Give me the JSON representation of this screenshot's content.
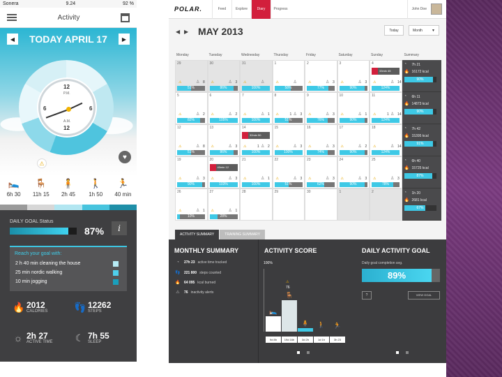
{
  "phone": {
    "status": {
      "carrier": "Sonera",
      "time": "9.24",
      "battery": "92 %"
    },
    "header": {
      "title": "Activity"
    },
    "date": "TODAY APRIL 17",
    "clock": {
      "top": "12",
      "top_sub": "P.M.",
      "left": "6",
      "right": "6",
      "bottom_sub": "A.M.",
      "bottom": "12"
    },
    "activities": [
      {
        "icon": "sleep-icon",
        "glyph": "🛌",
        "time": "6h 30",
        "color": "#9a9a9a"
      },
      {
        "icon": "sitting-icon",
        "glyph": "🪑",
        "time": "11h 15",
        "color": "#d7d7d7"
      },
      {
        "icon": "standing-icon",
        "glyph": "🧍",
        "time": "2h 45",
        "color": "#b2e6f1"
      },
      {
        "icon": "walking-icon",
        "glyph": "🚶",
        "time": "1h 50",
        "color": "#47c4de"
      },
      {
        "icon": "running-icon",
        "glyph": "🏃",
        "time": "40 min",
        "color": "#1f8fa8"
      }
    ],
    "daily_goal": {
      "label": "DAILY GOAL Status",
      "percent_text": "87%",
      "percent": 87,
      "info": "i"
    },
    "reach": {
      "heading": "Reach your goal with:",
      "items": [
        {
          "text": "2 h 40 min cleaning the house",
          "color": "#b7ecf6"
        },
        {
          "text": "25 min nordic walking",
          "color": "#4fd0ec"
        },
        {
          "text": "10 min jogging",
          "color": "#1a9fbc"
        }
      ]
    },
    "stats": [
      {
        "icon": "flame-icon",
        "glyph": "🔥",
        "value": "2012",
        "label": "CALORIES"
      },
      {
        "icon": "footsteps-icon",
        "glyph": "👣",
        "value": "12262",
        "label": "STEPS"
      },
      {
        "icon": "active-time-icon",
        "glyph": "☼",
        "value": "2h 27",
        "label": "ACTIVE TIME"
      },
      {
        "icon": "moon-icon",
        "glyph": "☾",
        "value": "7h 55",
        "label": "SLEEP"
      }
    ]
  },
  "web": {
    "logo": "POLAR.",
    "tabs": [
      {
        "label": "Feed",
        "active": false
      },
      {
        "label": "Explore",
        "active": false
      },
      {
        "label": "Diary",
        "active": true
      },
      {
        "label": "Progress",
        "active": false
      }
    ],
    "user": "John Doe",
    "month": "MAY 2013",
    "today_btn": "Today",
    "view_select": "Month",
    "weekdays": [
      "Monday",
      "Tuesday",
      "Wednesday",
      "Thursday",
      "Friday",
      "Saturday",
      "Sunday"
    ],
    "summary_label": "Summary",
    "weeks": [
      {
        "days": [
          {
            "d": "29",
            "other": true,
            "c1": "",
            "c2": "8",
            "pct": 51,
            "txt": "51%"
          },
          {
            "d": "30",
            "other": true,
            "c1": "",
            "c2": "3",
            "pct": 86,
            "txt": "86%"
          },
          {
            "d": "31",
            "other": true,
            "c1": "",
            "c2": "",
            "pct": 100,
            "txt": "100%"
          },
          {
            "d": "1",
            "c1": "",
            "c2": "",
            "pct": 58,
            "txt": "58%"
          },
          {
            "d": "2",
            "c1": "",
            "c2": "3",
            "pct": 77,
            "txt": "77%"
          },
          {
            "d": "3",
            "c1": "",
            "c2": "3",
            "pct": 90,
            "txt": "90%"
          },
          {
            "d": "4",
            "c1": "",
            "c2": "14",
            "pct": 100,
            "txt": "124%",
            "event": "33min 45"
          }
        ],
        "summary": {
          "time": "7h 21",
          "kcal": "16172 kcal",
          "pct": 90,
          "txt": "90%"
        }
      },
      {
        "days": [
          {
            "d": "5",
            "c1": "",
            "c2": "2",
            "pct": 82,
            "txt": "82%"
          },
          {
            "d": "6",
            "c1": "",
            "c2": "2",
            "pct": 100,
            "txt": "105%"
          },
          {
            "d": "7",
            "c1": "",
            "c2": "1",
            "pct": 100,
            "txt": "100%"
          },
          {
            "d": "8",
            "c1": "1",
            "c2": "3",
            "pct": 51,
            "txt": "51%"
          },
          {
            "d": "9",
            "c1": "",
            "c2": "3",
            "pct": 76,
            "txt": "76%"
          },
          {
            "d": "10",
            "c1": "",
            "c2": "1",
            "pct": 90,
            "txt": "90%"
          },
          {
            "d": "11",
            "c1": "1",
            "c2": "14",
            "pct": 100,
            "txt": "124%"
          }
        ],
        "summary": {
          "time": "6h 11",
          "kcal": "14873 kcal",
          "pct": 90,
          "txt": "90%"
        }
      },
      {
        "days": [
          {
            "d": "12",
            "c1": "",
            "c2": "8",
            "pct": 51,
            "txt": "51%"
          },
          {
            "d": "13",
            "c1": "",
            "c2": "3",
            "pct": 86,
            "txt": "86%"
          },
          {
            "d": "14",
            "c1": "1",
            "c2": "2",
            "pct": 100,
            "txt": "100%",
            "event": "32min 50"
          },
          {
            "d": "15",
            "c1": "",
            "c2": "3",
            "pct": 100,
            "txt": "100%"
          },
          {
            "d": "16",
            "c1": "",
            "c2": "3",
            "pct": 74,
            "txt": "74%"
          },
          {
            "d": "17",
            "c1": "",
            "c2": "2",
            "pct": 90,
            "txt": "90%"
          },
          {
            "d": "18",
            "c1": "",
            "c2": "14",
            "pct": 100,
            "txt": "124%"
          }
        ],
        "summary": {
          "time": "7h 42",
          "kcal": "15395 kcal",
          "pct": 91,
          "txt": "91%"
        }
      },
      {
        "days": [
          {
            "d": "19",
            "c1": "",
            "c2": "3",
            "pct": 90,
            "txt": "90%"
          },
          {
            "d": "20",
            "c1": "",
            "c2": "3",
            "pct": 100,
            "txt": "103%",
            "event": "40min 12"
          },
          {
            "d": "21",
            "c1": "",
            "c2": "1",
            "pct": 100,
            "txt": "100%"
          },
          {
            "d": "22",
            "c1": "",
            "c2": "3",
            "pct": 51,
            "txt": "51%"
          },
          {
            "d": "23",
            "c1": "",
            "c2": "3",
            "pct": 62,
            "txt": "62%"
          },
          {
            "d": "24",
            "c1": "",
            "c2": "3",
            "pct": 90,
            "txt": "90%"
          },
          {
            "d": "25",
            "c1": "",
            "c2": "3",
            "pct": 78,
            "txt": "78%"
          }
        ],
        "summary": {
          "time": "6h 40",
          "kcal": "15725 kcal",
          "pct": 87,
          "txt": "87%"
        }
      },
      {
        "days": [
          {
            "d": "26",
            "c1": "",
            "c2": "1",
            "pct": 10,
            "txt": "10%"
          },
          {
            "d": "27",
            "c1": "",
            "c2": "1",
            "pct": 28,
            "txt": "28%"
          },
          {
            "d": "28",
            "c1": "",
            "c2": "",
            "pct": -1,
            "txt": ""
          },
          {
            "d": "29",
            "c1": "",
            "c2": "",
            "pct": -1,
            "txt": ""
          },
          {
            "d": "30",
            "c1": "",
            "c2": "",
            "pct": -1,
            "txt": ""
          },
          {
            "d": "1",
            "other": true,
            "c1": "",
            "c2": "",
            "pct": -1,
            "txt": ""
          },
          {
            "d": "2",
            "other": true,
            "c1": "",
            "c2": "",
            "pct": -1,
            "txt": ""
          }
        ],
        "summary": {
          "time": "1h 20",
          "kcal": "2681 kcal",
          "pct": 67,
          "txt": "67%"
        }
      }
    ],
    "summary_tabs": [
      {
        "label": "ACTIVITY SUMMARY",
        "active": true
      },
      {
        "label": "TRAINING SUMMARY",
        "active": false
      }
    ],
    "monthly": {
      "title": "MONTHLY SUMMARY",
      "rows": [
        {
          "icon": "clock-icon",
          "glyph": "◔",
          "value": "27h 23",
          "text": "active time tracked"
        },
        {
          "icon": "footsteps-icon",
          "glyph": "👣",
          "value": "221 800",
          "text": "steps counted"
        },
        {
          "icon": "flame-icon",
          "glyph": "🔥",
          "value": "64 095",
          "text": "kcal burned"
        },
        {
          "icon": "warning-icon",
          "glyph": "⚠",
          "value": "76",
          "text": "inactivity alerts"
        }
      ]
    },
    "activity_score": {
      "title": "ACTIVITY SCORE",
      "scale_label": "100%",
      "warn_value": "76"
    },
    "daily_activity_goal": {
      "title": "DAILY ACTIVITY GOAL",
      "label": "Daily goal completion avg.",
      "percent": 89,
      "percent_text": "89%",
      "help": "?",
      "view_goal": "VIEW GOAL"
    },
    "chart_data": {
      "type": "bar",
      "categories": [
        "sleep",
        "sitting",
        "standing",
        "walking",
        "running"
      ],
      "values": [
        24,
        50,
        6,
        3,
        2
      ],
      "time_labels": [
        "9d 8h",
        "19d 16h",
        "3d 2h",
        "1d 1h",
        "3h 23"
      ],
      "ylim": [
        0,
        100
      ]
    }
  }
}
